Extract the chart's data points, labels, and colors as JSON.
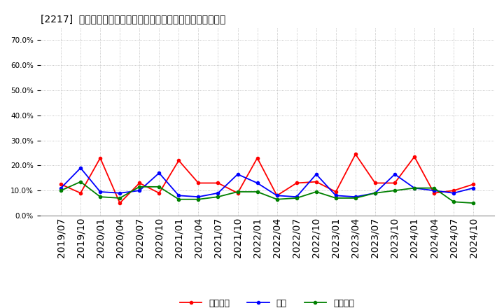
{
  "title": "[2217]  売上債権、在庫、買入債務の総資産に対する比率の推移",
  "labels": [
    "売上債権",
    "在庫",
    "買入債務"
  ],
  "line_colors": [
    "#ff0000",
    "#0000ff",
    "#008000"
  ],
  "x_labels": [
    "2019/07",
    "2019/10",
    "2020/01",
    "2020/04",
    "2020/07",
    "2020/10",
    "2021/01",
    "2021/04",
    "2021/07",
    "2021/10",
    "2022/01",
    "2022/04",
    "2022/07",
    "2022/10",
    "2023/01",
    "2023/04",
    "2023/07",
    "2023/10",
    "2024/01",
    "2024/04",
    "2024/07",
    "2024/10"
  ],
  "receivables": [
    0.125,
    0.09,
    0.23,
    0.05,
    0.13,
    0.09,
    0.22,
    0.13,
    0.13,
    0.09,
    0.23,
    0.08,
    0.13,
    0.135,
    0.095,
    0.245,
    0.13,
    0.13,
    0.235,
    0.09,
    0.1,
    0.125
  ],
  "inventory": [
    0.11,
    0.19,
    0.095,
    0.09,
    0.1,
    0.17,
    0.08,
    0.075,
    0.09,
    0.165,
    0.13,
    0.08,
    0.075,
    0.165,
    0.08,
    0.075,
    0.09,
    0.165,
    0.11,
    0.1,
    0.09,
    0.11
  ],
  "payables": [
    0.1,
    0.135,
    0.075,
    0.07,
    0.115,
    0.115,
    0.065,
    0.065,
    0.075,
    0.095,
    0.095,
    0.065,
    0.07,
    0.095,
    0.07,
    0.07,
    0.09,
    0.1,
    0.11,
    0.11,
    0.055,
    0.05
  ],
  "ylim": [
    0.0,
    0.75
  ],
  "yticks": [
    0.0,
    0.1,
    0.2,
    0.3,
    0.4,
    0.5,
    0.6,
    0.7
  ],
  "bg_color": "#ffffff",
  "grid_color": "#aaaaaa",
  "title_fontsize": 10.5,
  "tick_fontsize": 7.5,
  "legend_fontsize": 9
}
